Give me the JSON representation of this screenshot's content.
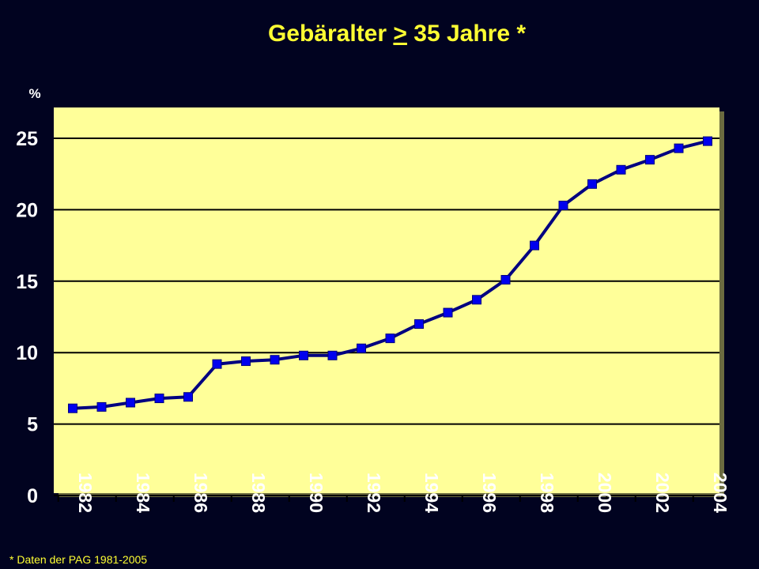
{
  "chart_data": {
    "type": "line",
    "title": {
      "prefix": "Gebäralter ",
      "underlined": ">",
      "suffix": " 35 Jahre *"
    },
    "ylabel": "%",
    "xlabel": "",
    "ylim": [
      0,
      25
    ],
    "yticks": [
      "0",
      "5",
      "10",
      "15",
      "20",
      "25"
    ],
    "xtick_labels": [
      "1982",
      "1984",
      "1986",
      "1988",
      "1990",
      "1992",
      "1994",
      "1996",
      "1998",
      "2000",
      "2002",
      "2004"
    ],
    "grid": true,
    "x": [
      1982,
      1983,
      1984,
      1985,
      1986,
      1987,
      1988,
      1989,
      1990,
      1991,
      1992,
      1993,
      1994,
      1995,
      1996,
      1997,
      1998,
      1999,
      2000,
      2001,
      2002,
      2003,
      2004
    ],
    "values": [
      6.1,
      6.2,
      6.5,
      6.8,
      6.9,
      9.2,
      9.4,
      9.5,
      9.8,
      9.8,
      10.3,
      11.0,
      12.0,
      12.8,
      13.7,
      15.1,
      17.5,
      20.3,
      21.8,
      22.8,
      23.5,
      24.3,
      24.8
    ],
    "footnote": "* Daten der PAG 1981-2005",
    "colors": {
      "background": "#010320",
      "plot_area": "#ffff99",
      "line": "#000080",
      "marker": "#0000ee",
      "title": "#ffff33",
      "axis_text": "#ffffff"
    }
  }
}
